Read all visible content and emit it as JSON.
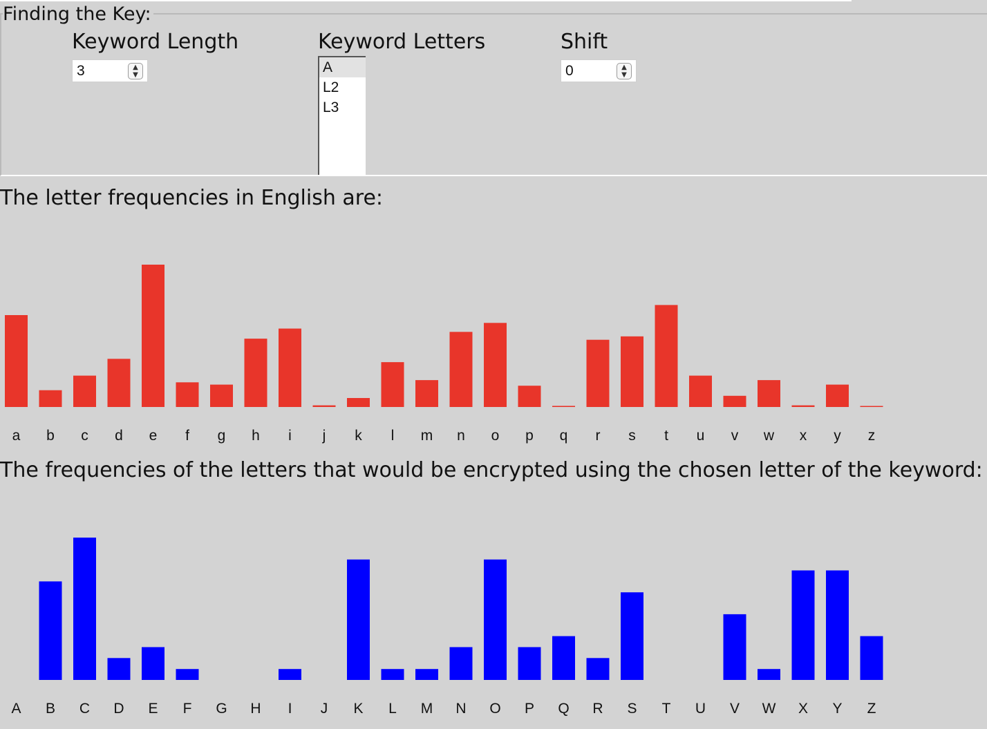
{
  "key_panel": {
    "legend": "Finding the Key:",
    "keyword_length": {
      "label": "Keyword Length",
      "value": "3"
    },
    "keyword_letters": {
      "label": "Keyword Letters",
      "items": [
        "A",
        "L2",
        "L3"
      ],
      "selected_index": 0
    },
    "shift": {
      "label": "Shift",
      "value": "0"
    }
  },
  "english_heading": "The letter frequencies in English are:",
  "cipher_heading": "The frequencies of the letters that would be encrypted using the chosen letter of the keyword:",
  "chart_data": [
    {
      "type": "bar",
      "categories": [
        "a",
        "b",
        "c",
        "d",
        "e",
        "f",
        "g",
        "h",
        "i",
        "j",
        "k",
        "l",
        "m",
        "n",
        "o",
        "p",
        "q",
        "r",
        "s",
        "t",
        "u",
        "v",
        "w",
        "x",
        "y",
        "z"
      ],
      "values": [
        8.2,
        1.5,
        2.8,
        4.3,
        12.7,
        2.2,
        2.0,
        6.1,
        7.0,
        0.15,
        0.8,
        4.0,
        2.4,
        6.7,
        7.5,
        1.9,
        0.1,
        6.0,
        6.3,
        9.1,
        2.8,
        1.0,
        2.4,
        0.15,
        2.0,
        0.07
      ],
      "ylim": [
        0,
        12.7
      ],
      "color": "#e8352a",
      "grid": false
    },
    {
      "type": "bar",
      "categories": [
        "A",
        "B",
        "C",
        "D",
        "E",
        "F",
        "G",
        "H",
        "I",
        "J",
        "K",
        "L",
        "M",
        "N",
        "O",
        "P",
        "Q",
        "R",
        "S",
        "T",
        "U",
        "V",
        "W",
        "X",
        "Y",
        "Z"
      ],
      "values": [
        0,
        9,
        13,
        2,
        3,
        1,
        0,
        0,
        1,
        0,
        11,
        1,
        1,
        3,
        11,
        3,
        4,
        2,
        8,
        0,
        0,
        6,
        1,
        10,
        10,
        4
      ],
      "ylim": [
        0,
        13
      ],
      "color": "#0000ff",
      "grid": false
    }
  ]
}
